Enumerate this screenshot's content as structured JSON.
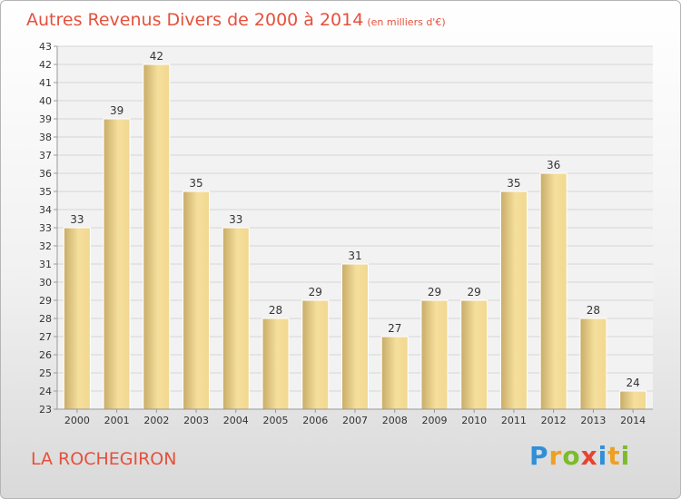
{
  "header": {
    "title": "Autres Revenus Divers de 2000 à 2014",
    "unit": "(en milliers d'€)"
  },
  "footer": {
    "commune": "LA ROCHEGIRON",
    "logo_letters": [
      {
        "ch": "P",
        "color": "#2f8fd8"
      },
      {
        "ch": "r",
        "color": "#f0a020"
      },
      {
        "ch": "o",
        "color": "#7cbc2a"
      },
      {
        "ch": "x",
        "color": "#e8432f"
      },
      {
        "ch": "i",
        "color": "#2f8fd8"
      },
      {
        "ch": "t",
        "color": "#f0a020"
      },
      {
        "ch": "i",
        "color": "#7cbc2a"
      }
    ]
  },
  "chart_data": {
    "type": "bar",
    "title": "Autres Revenus Divers de 2000 à 2014",
    "subtitle": "(en milliers d'€)",
    "categories": [
      "2000",
      "2001",
      "2002",
      "2003",
      "2004",
      "2005",
      "2006",
      "2007",
      "2008",
      "2009",
      "2010",
      "2011",
      "2012",
      "2013",
      "2014"
    ],
    "values": [
      33,
      39,
      42,
      35,
      33,
      28,
      29,
      31,
      27,
      29,
      29,
      35,
      36,
      28,
      24
    ],
    "ylim": [
      23,
      43
    ],
    "yticks": [
      23,
      24,
      25,
      26,
      27,
      28,
      29,
      30,
      31,
      32,
      33,
      34,
      35,
      36,
      37,
      38,
      39,
      40,
      41,
      42,
      43
    ],
    "grid": true,
    "colors": {
      "bar_light": "#f5df9c",
      "bar_dark": "#c8ac68",
      "grid": "#d6d6d6",
      "plot_bg": "#f2f2f2",
      "axis": "#999999"
    }
  }
}
